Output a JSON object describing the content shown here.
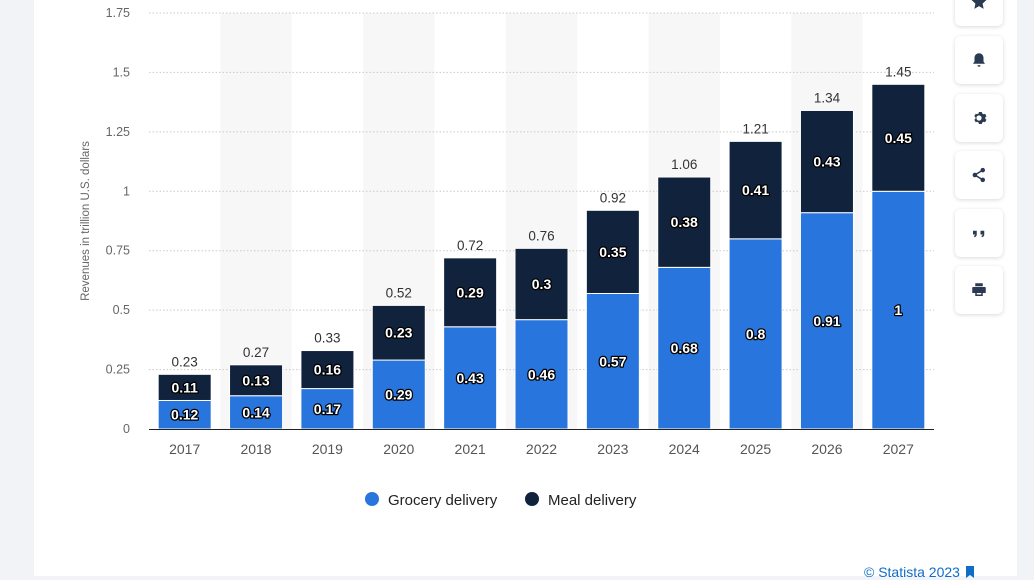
{
  "chart_data": {
    "type": "bar",
    "stacked": true,
    "categories": [
      "2017",
      "2018",
      "2019",
      "2020",
      "2021",
      "2022",
      "2023",
      "2024",
      "2025",
      "2026",
      "2027"
    ],
    "series": [
      {
        "name": "Grocery delivery",
        "color": "#2876dd",
        "values": [
          0.12,
          0.14,
          0.17,
          0.29,
          0.43,
          0.46,
          0.57,
          0.68,
          0.8,
          0.91,
          1
        ]
      },
      {
        "name": "Meal delivery",
        "color": "#10223c",
        "values": [
          0.11,
          0.13,
          0.16,
          0.23,
          0.29,
          0.3,
          0.35,
          0.38,
          0.41,
          0.43,
          0.45
        ]
      }
    ],
    "totals": [
      "0.23",
      "0.27",
      "0.33",
      "0.52",
      "0.72",
      "0.76",
      "0.92",
      "1.06",
      "1.21",
      "1.34",
      "1.45"
    ],
    "ylabel": "Revenues in trillion U.S. dollars",
    "ylim": [
      0,
      1.75
    ],
    "yticks": [
      0,
      0.25,
      0.5,
      0.75,
      1,
      1.25,
      1.5,
      1.75
    ],
    "ytick_labels": [
      "0",
      "0.25",
      "0.5",
      "0.75",
      "1",
      "1.25",
      "1.5",
      "1.75"
    ],
    "grid": true,
    "legend_position": "bottom"
  },
  "sidebar": {
    "buttons": [
      {
        "name": "favorite-button",
        "icon": "star-icon"
      },
      {
        "name": "notification-button",
        "icon": "bell-icon"
      },
      {
        "name": "settings-button",
        "icon": "gear-icon"
      },
      {
        "name": "share-button",
        "icon": "share-icon"
      },
      {
        "name": "cite-button",
        "icon": "quote-icon"
      },
      {
        "name": "print-button",
        "icon": "printer-icon"
      }
    ]
  },
  "footer": {
    "copyright": "© Statista 2023"
  }
}
